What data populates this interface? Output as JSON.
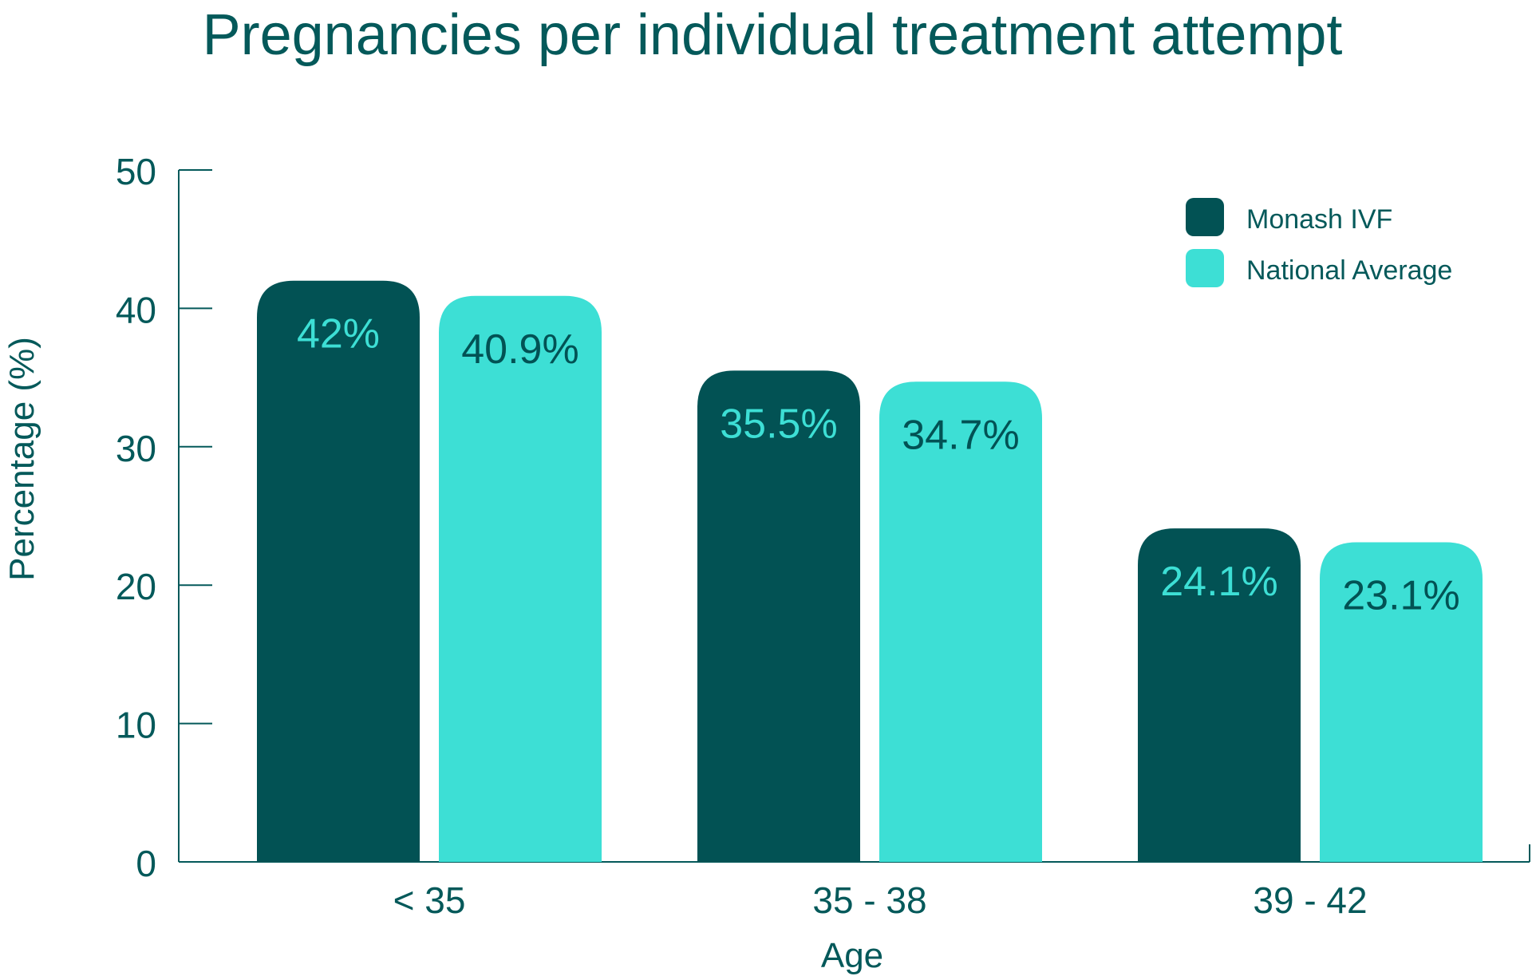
{
  "colors": {
    "text": "#04595a",
    "axis": "#04595a",
    "series_dark": "#025254",
    "series_light": "#3ddfd5"
  },
  "chart_data": {
    "type": "bar",
    "title": "Pregnancies per individual treatment attempt",
    "xlabel": "Age",
    "ylabel": "Percentage (%)",
    "categories": [
      "< 35",
      "35 - 38",
      "39 - 42"
    ],
    "ylim": [
      0,
      50
    ],
    "yticks": [
      "0",
      "10",
      "20",
      "30",
      "40",
      "50"
    ],
    "grid": false,
    "legend_position": "top-right",
    "series": [
      {
        "name": "Monash IVF",
        "values": [
          42,
          35.5,
          24.1
        ],
        "labels": [
          "42%",
          "35.5%",
          "24.1%"
        ],
        "color": "#025254",
        "label_color": "#3ddfd5"
      },
      {
        "name": "National Average",
        "values": [
          40.9,
          34.7,
          23.1
        ],
        "labels": [
          "40.9%",
          "34.7%",
          "23.1%"
        ],
        "color": "#3ddfd5",
        "label_color": "#025254"
      }
    ]
  }
}
